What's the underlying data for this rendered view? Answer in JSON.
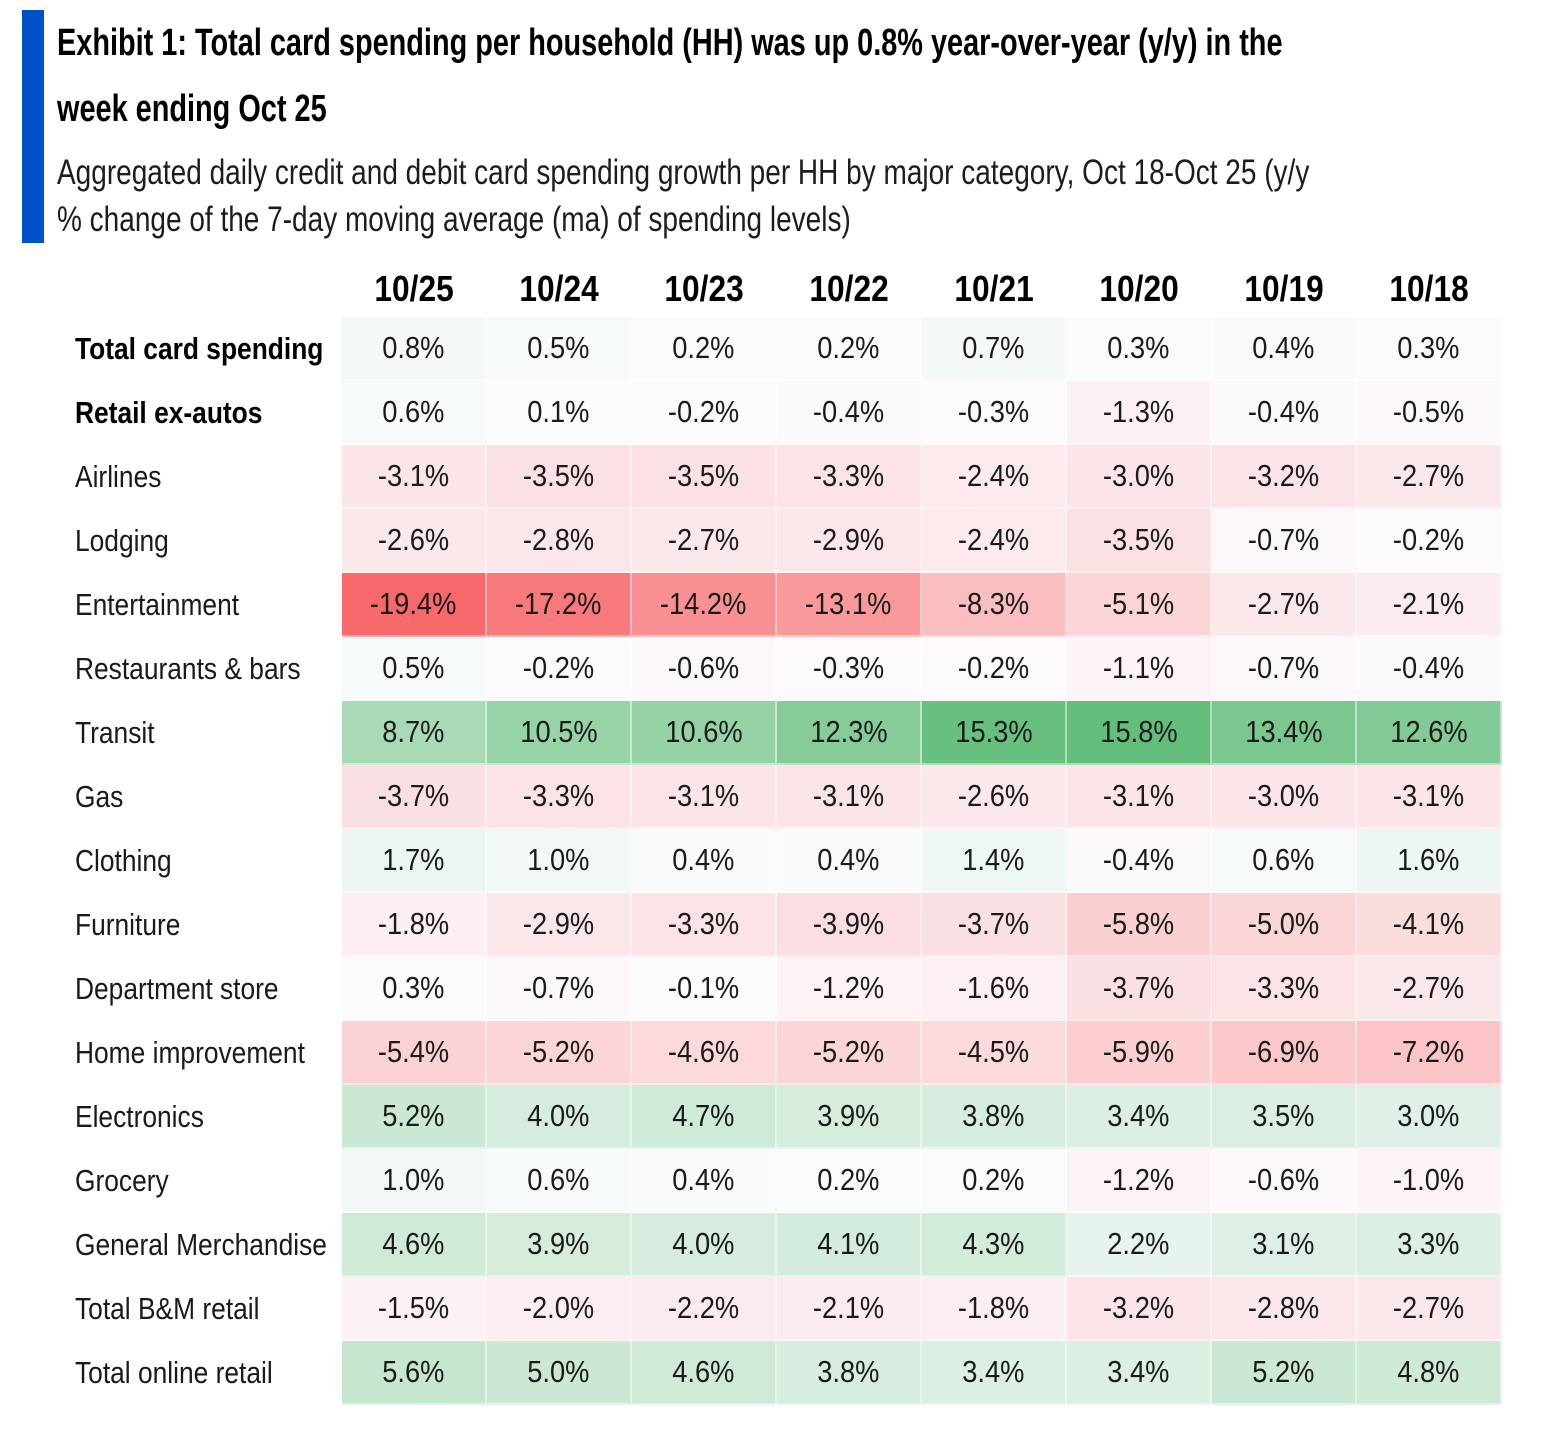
{
  "header": {
    "accent_color": "#0051C7",
    "title_line1": "Exhibit 1: Total card spending per household (HH) was up 0.8% year-over-year (y/y) in the",
    "title_line2": "week ending Oct 25",
    "subtitle_line1": "Aggregated daily credit and debit card spending growth per HH by major category, Oct 18-Oct 25 (y/y",
    "subtitle_line2": "% change of the 7-day moving average (ma) of spending levels)"
  },
  "chart_data": {
    "type": "heatmap",
    "title": "Exhibit 1: Total card spending per household (HH) was up 0.8% year-over-year (y/y) in the week ending Oct 25",
    "subtitle": "Aggregated daily credit and debit card spending growth per HH by major category, Oct 18-Oct 25 (y/y % change of the 7-day moving average (ma) of spending levels)",
    "unit": "%",
    "value_format": "one_decimal_percent",
    "grid": false,
    "legend": "none",
    "columns": [
      "10/25",
      "10/24",
      "10/23",
      "10/22",
      "10/21",
      "10/20",
      "10/19",
      "10/18"
    ],
    "rows": [
      {
        "label": "Total card spending",
        "bold": true,
        "values": [
          0.8,
          0.5,
          0.2,
          0.2,
          0.7,
          0.3,
          0.4,
          0.3
        ]
      },
      {
        "label": "Retail ex-autos",
        "bold": true,
        "values": [
          0.6,
          0.1,
          -0.2,
          -0.4,
          -0.3,
          -1.3,
          -0.4,
          -0.5
        ]
      },
      {
        "label": "Airlines",
        "bold": false,
        "values": [
          -3.1,
          -3.5,
          -3.5,
          -3.3,
          -2.4,
          -3.0,
          -3.2,
          -2.7
        ]
      },
      {
        "label": "Lodging",
        "bold": false,
        "values": [
          -2.6,
          -2.8,
          -2.7,
          -2.9,
          -2.4,
          -3.5,
          -0.7,
          -0.2
        ]
      },
      {
        "label": "Entertainment",
        "bold": false,
        "values": [
          -19.4,
          -17.2,
          -14.2,
          -13.1,
          -8.3,
          -5.1,
          -2.7,
          -2.1
        ]
      },
      {
        "label": "Restaurants & bars",
        "bold": false,
        "values": [
          0.5,
          -0.2,
          -0.6,
          -0.3,
          -0.2,
          -1.1,
          -0.7,
          -0.4
        ]
      },
      {
        "label": "Transit",
        "bold": false,
        "values": [
          8.7,
          10.5,
          10.6,
          12.3,
          15.3,
          15.8,
          13.4,
          12.6
        ]
      },
      {
        "label": "Gas",
        "bold": false,
        "values": [
          -3.7,
          -3.3,
          -3.1,
          -3.1,
          -2.6,
          -3.1,
          -3.0,
          -3.1
        ]
      },
      {
        "label": "Clothing",
        "bold": false,
        "values": [
          1.7,
          1.0,
          0.4,
          0.4,
          1.4,
          -0.4,
          0.6,
          1.6
        ]
      },
      {
        "label": "Furniture",
        "bold": false,
        "values": [
          -1.8,
          -2.9,
          -3.3,
          -3.9,
          -3.7,
          -5.8,
          -5.0,
          -4.1
        ]
      },
      {
        "label": "Department store",
        "bold": false,
        "values": [
          0.3,
          -0.7,
          -0.1,
          -1.2,
          -1.6,
          -3.7,
          -3.3,
          -2.7
        ]
      },
      {
        "label": "Home improvement",
        "bold": false,
        "values": [
          -5.4,
          -5.2,
          -4.6,
          -5.2,
          -4.5,
          -5.9,
          -6.9,
          -7.2
        ]
      },
      {
        "label": "Electronics",
        "bold": false,
        "values": [
          5.2,
          4.0,
          4.7,
          3.9,
          3.8,
          3.4,
          3.5,
          3.0
        ]
      },
      {
        "label": "Grocery",
        "bold": false,
        "values": [
          1.0,
          0.6,
          0.4,
          0.2,
          0.2,
          -1.2,
          -0.6,
          -1.0
        ]
      },
      {
        "label": "General Merchandise",
        "bold": false,
        "values": [
          4.6,
          3.9,
          4.0,
          4.1,
          4.3,
          2.2,
          3.1,
          3.3
        ]
      },
      {
        "label": "Total B&M retail",
        "bold": false,
        "values": [
          -1.5,
          -2.0,
          -2.2,
          -2.1,
          -1.8,
          -3.2,
          -2.8,
          -2.7
        ]
      },
      {
        "label": "Total online retail",
        "bold": false,
        "values": [
          5.6,
          5.0,
          4.6,
          3.8,
          3.4,
          3.4,
          5.2,
          4.8
        ]
      }
    ],
    "color_scale": {
      "min_value": -19.4,
      "mid_value": 0,
      "max_value": 15.8,
      "min_color": "#F8696B",
      "mid_color": "#FCFCFF",
      "max_color": "#63BE7B"
    }
  }
}
